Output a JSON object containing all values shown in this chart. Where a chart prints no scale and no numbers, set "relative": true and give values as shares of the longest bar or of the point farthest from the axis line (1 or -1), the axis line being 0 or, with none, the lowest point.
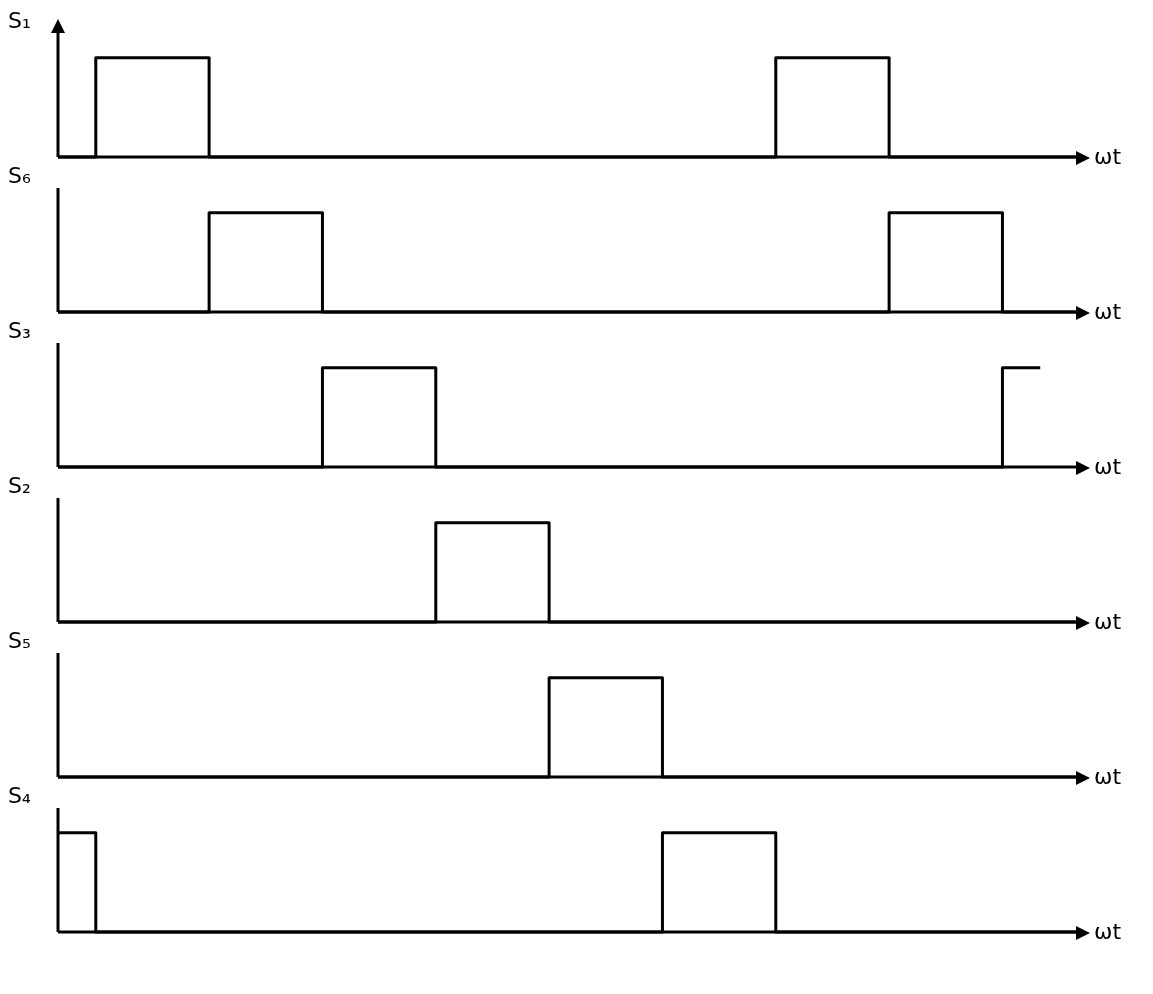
{
  "chart_data": [
    {
      "type": "step",
      "ylabel": "S₁",
      "xlabel": "ωt",
      "relative": true,
      "color": "#000000",
      "categories": [
        null,
        null,
        null,
        null,
        null,
        null,
        null,
        null,
        null,
        null,
        null,
        null,
        null,
        null,
        null,
        null,
        null,
        null,
        null,
        null,
        null,
        null,
        null,
        null,
        null,
        null,
        null,
        null
      ],
      "values": [
        0,
        1,
        1,
        1,
        0,
        0,
        0,
        0,
        0,
        0,
        0,
        0,
        0,
        0,
        0,
        0,
        0,
        0,
        0,
        1,
        1,
        1,
        0,
        0,
        0,
        0,
        0,
        0
      ]
    },
    {
      "type": "step",
      "ylabel": "S₆",
      "xlabel": "ωt",
      "relative": true,
      "color": "#000000",
      "categories": [
        null,
        null,
        null,
        null,
        null,
        null,
        null,
        null,
        null,
        null,
        null,
        null,
        null,
        null,
        null,
        null,
        null,
        null,
        null,
        null,
        null,
        null,
        null,
        null,
        null,
        null,
        null,
        null
      ],
      "values": [
        0,
        0,
        0,
        0,
        1,
        1,
        1,
        0,
        0,
        0,
        0,
        0,
        0,
        0,
        0,
        0,
        0,
        0,
        0,
        0,
        0,
        0,
        1,
        1,
        1,
        0,
        0,
        0
      ]
    },
    {
      "type": "step",
      "ylabel": "S₃",
      "xlabel": "ωt",
      "relative": true,
      "color": "#000000",
      "categories": [
        null,
        null,
        null,
        null,
        null,
        null,
        null,
        null,
        null,
        null,
        null,
        null,
        null,
        null,
        null,
        null,
        null,
        null,
        null,
        null,
        null,
        null,
        null,
        null,
        null,
        null,
        null,
        null
      ],
      "values": [
        0,
        0,
        0,
        0,
        0,
        0,
        0,
        1,
        1,
        1,
        0,
        0,
        0,
        0,
        0,
        0,
        0,
        0,
        0,
        0,
        0,
        0,
        0,
        0,
        0,
        1,
        1,
        null
      ]
    },
    {
      "type": "step",
      "ylabel": "S₂",
      "xlabel": "ωt",
      "relative": true,
      "color": "#000000",
      "categories": [
        null,
        null,
        null,
        null,
        null,
        null,
        null,
        null,
        null,
        null,
        null,
        null,
        null,
        null,
        null,
        null,
        null,
        null,
        null,
        null,
        null,
        null,
        null,
        null,
        null,
        null,
        null,
        null
      ],
      "values": [
        0,
        0,
        0,
        0,
        0,
        0,
        0,
        0,
        0,
        0,
        1,
        1,
        1,
        0,
        0,
        0,
        0,
        0,
        0,
        0,
        0,
        0,
        0,
        0,
        0,
        0,
        0,
        0
      ]
    },
    {
      "type": "step",
      "ylabel": "S₅",
      "xlabel": "ωt",
      "relative": true,
      "color": "#000000",
      "categories": [
        null,
        null,
        null,
        null,
        null,
        null,
        null,
        null,
        null,
        null,
        null,
        null,
        null,
        null,
        null,
        null,
        null,
        null,
        null,
        null,
        null,
        null,
        null,
        null,
        null,
        null,
        null,
        null
      ],
      "values": [
        0,
        0,
        0,
        0,
        0,
        0,
        0,
        0,
        0,
        0,
        0,
        0,
        0,
        1,
        1,
        1,
        0,
        0,
        0,
        0,
        0,
        0,
        0,
        0,
        0,
        0,
        0,
        0
      ]
    },
    {
      "type": "step",
      "ylabel": "S₄",
      "xlabel": "ωt",
      "relative": true,
      "color": "#000000",
      "categories": [
        null,
        null,
        null,
        null,
        null,
        null,
        null,
        null,
        null,
        null,
        null,
        null,
        null,
        null,
        null,
        null,
        null,
        null,
        null,
        null,
        null,
        null,
        null,
        null,
        null,
        null,
        null,
        null
      ],
      "values": [
        1,
        0,
        0,
        0,
        0,
        0,
        0,
        0,
        0,
        0,
        0,
        0,
        0,
        0,
        0,
        0,
        1,
        1,
        1,
        0,
        0,
        0,
        0,
        0,
        0,
        0,
        0,
        0
      ]
    }
  ]
}
